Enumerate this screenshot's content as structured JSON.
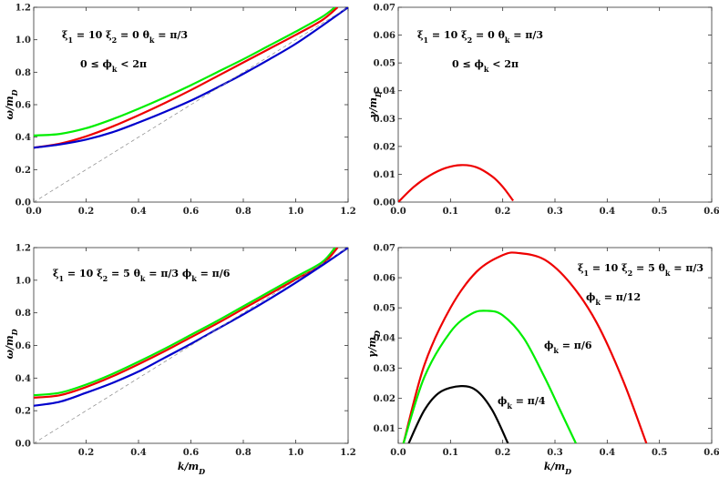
{
  "chart_data": [
    {
      "type": "line",
      "xlabel": "",
      "ylabel": "ω/m_D",
      "xlim": [
        0,
        1.2
      ],
      "ylim": [
        0,
        1.2
      ],
      "xticks": [
        "0.0",
        "0.2",
        "0.4",
        "0.6",
        "0.8",
        "1.0",
        "1.2"
      ],
      "yticks": [
        "0.0",
        "0.2",
        "0.4",
        "0.6",
        "0.8",
        "1.0",
        "1.2"
      ],
      "annotations": [
        "ξ1 = 10   ξ2 = 0   θk = π/3",
        "0 ≤ ϕk < 2π"
      ],
      "series": [
        {
          "color": "#00ee00",
          "x": [
            0,
            0.1,
            0.2,
            0.3,
            0.4,
            0.5,
            0.6,
            0.7,
            0.8,
            0.9,
            1.0,
            1.1,
            1.15
          ],
          "y": [
            0.41,
            0.42,
            0.455,
            0.51,
            0.575,
            0.645,
            0.72,
            0.8,
            0.88,
            0.965,
            1.05,
            1.14,
            1.2
          ]
        },
        {
          "color": "#ee0000",
          "x": [
            0,
            0.1,
            0.2,
            0.3,
            0.4,
            0.5,
            0.6,
            0.7,
            0.8,
            0.9,
            1.0,
            1.1,
            1.16
          ],
          "y": [
            0.335,
            0.36,
            0.405,
            0.465,
            0.535,
            0.61,
            0.69,
            0.775,
            0.86,
            0.945,
            1.03,
            1.12,
            1.2
          ]
        },
        {
          "color": "#0000cc",
          "x": [
            0,
            0.1,
            0.2,
            0.3,
            0.4,
            0.5,
            0.6,
            0.7,
            0.8,
            0.9,
            1.0,
            1.1,
            1.2
          ],
          "y": [
            0.335,
            0.355,
            0.385,
            0.43,
            0.49,
            0.555,
            0.625,
            0.705,
            0.79,
            0.88,
            0.975,
            1.085,
            1.2
          ]
        },
        {
          "color": "#888888",
          "dashed": true,
          "x": [
            0,
            1.2
          ],
          "y": [
            0,
            1.2
          ]
        }
      ]
    },
    {
      "type": "line",
      "xlabel": "",
      "ylabel": "γ/m_D",
      "xlim": [
        0,
        0.6
      ],
      "ylim": [
        0,
        0.07
      ],
      "xticks": [
        "0.0",
        "0.1",
        "0.2",
        "0.3",
        "0.4",
        "0.5",
        "0.6"
      ],
      "yticks": [
        "0.00",
        "0.01",
        "0.02",
        "0.03",
        "0.04",
        "0.05",
        "0.06",
        "0.07"
      ],
      "annotations": [
        "ξ1 = 10   ξ2 = 0   θk = π/3",
        "0 ≤ ϕk < 2π"
      ],
      "series": [
        {
          "color": "#ee0000",
          "x": [
            0,
            0.03,
            0.06,
            0.09,
            0.12,
            0.15,
            0.18,
            0.2,
            0.22
          ],
          "y": [
            0,
            0.0055,
            0.0095,
            0.0122,
            0.0133,
            0.0125,
            0.0092,
            0.0055,
            0.0005
          ]
        }
      ]
    },
    {
      "type": "line",
      "xlabel": "k/m_D",
      "ylabel": "ω/m_D",
      "xlim": [
        0,
        1.2
      ],
      "ylim": [
        0,
        1.2
      ],
      "xticks": [
        "0.2",
        "0.4",
        "0.6",
        "0.8",
        "1.0",
        "1.2"
      ],
      "yticks": [
        "0.0",
        "0.2",
        "0.4",
        "0.6",
        "0.8",
        "1.0",
        "1.2"
      ],
      "annotations": [
        "ξ1 = 10   ξ2 = 5   θk = π/3   ϕk = π/6"
      ],
      "series": [
        {
          "color": "#00ee00",
          "x": [
            0,
            0.1,
            0.2,
            0.3,
            0.4,
            0.5,
            0.6,
            0.7,
            0.8,
            0.9,
            1.0,
            1.1,
            1.15
          ],
          "y": [
            0.295,
            0.31,
            0.36,
            0.425,
            0.5,
            0.58,
            0.665,
            0.75,
            0.84,
            0.93,
            1.02,
            1.11,
            1.2
          ]
        },
        {
          "color": "#ee0000",
          "x": [
            0,
            0.1,
            0.2,
            0.3,
            0.4,
            0.5,
            0.6,
            0.7,
            0.8,
            0.9,
            1.0,
            1.1,
            1.16
          ],
          "y": [
            0.28,
            0.295,
            0.345,
            0.41,
            0.485,
            0.565,
            0.65,
            0.735,
            0.825,
            0.915,
            1.005,
            1.095,
            1.2
          ]
        },
        {
          "color": "#0000cc",
          "x": [
            0,
            0.1,
            0.2,
            0.3,
            0.4,
            0.5,
            0.6,
            0.7,
            0.8,
            0.9,
            1.0,
            1.1,
            1.2
          ],
          "y": [
            0.23,
            0.255,
            0.31,
            0.37,
            0.44,
            0.525,
            0.61,
            0.7,
            0.79,
            0.885,
            0.985,
            1.09,
            1.2
          ]
        },
        {
          "color": "#888888",
          "dashed": true,
          "x": [
            0,
            1.2
          ],
          "y": [
            0,
            1.2
          ]
        }
      ]
    },
    {
      "type": "line",
      "xlabel": "k/m_D",
      "ylabel": "γ/m_D",
      "xlim": [
        0,
        0.6
      ],
      "ylim": [
        0.005,
        0.07
      ],
      "xticks": [
        "0.0",
        "0.1",
        "0.2",
        "0.3",
        "0.4",
        "0.5",
        "0.6"
      ],
      "yticks": [
        "0.01",
        "0.02",
        "0.03",
        "0.04",
        "0.05",
        "0.06",
        "0.07"
      ],
      "annotations": [
        "ξ1 = 10   ξ2 = 5   θk = π/3"
      ],
      "series": [
        {
          "name": "ϕk = π/12",
          "color": "#ee0000",
          "x": [
            0.01,
            0.05,
            0.1,
            0.15,
            0.2,
            0.23,
            0.28,
            0.33,
            0.38,
            0.43,
            0.475
          ],
          "y": [
            0.005,
            0.031,
            0.05,
            0.062,
            0.0675,
            0.0682,
            0.066,
            0.058,
            0.045,
            0.026,
            0.005
          ]
        },
        {
          "name": "ϕk = π/6",
          "color": "#00ee00",
          "x": [
            0.01,
            0.05,
            0.1,
            0.14,
            0.17,
            0.2,
            0.24,
            0.28,
            0.31,
            0.34
          ],
          "y": [
            0.005,
            0.027,
            0.042,
            0.048,
            0.049,
            0.0475,
            0.04,
            0.027,
            0.016,
            0.005
          ]
        },
        {
          "name": "ϕk = π/4",
          "color": "#000000",
          "x": [
            0.02,
            0.05,
            0.08,
            0.12,
            0.15,
            0.18,
            0.21
          ],
          "y": [
            0.005,
            0.016,
            0.022,
            0.024,
            0.0225,
            0.016,
            0.005
          ]
        }
      ]
    }
  ]
}
